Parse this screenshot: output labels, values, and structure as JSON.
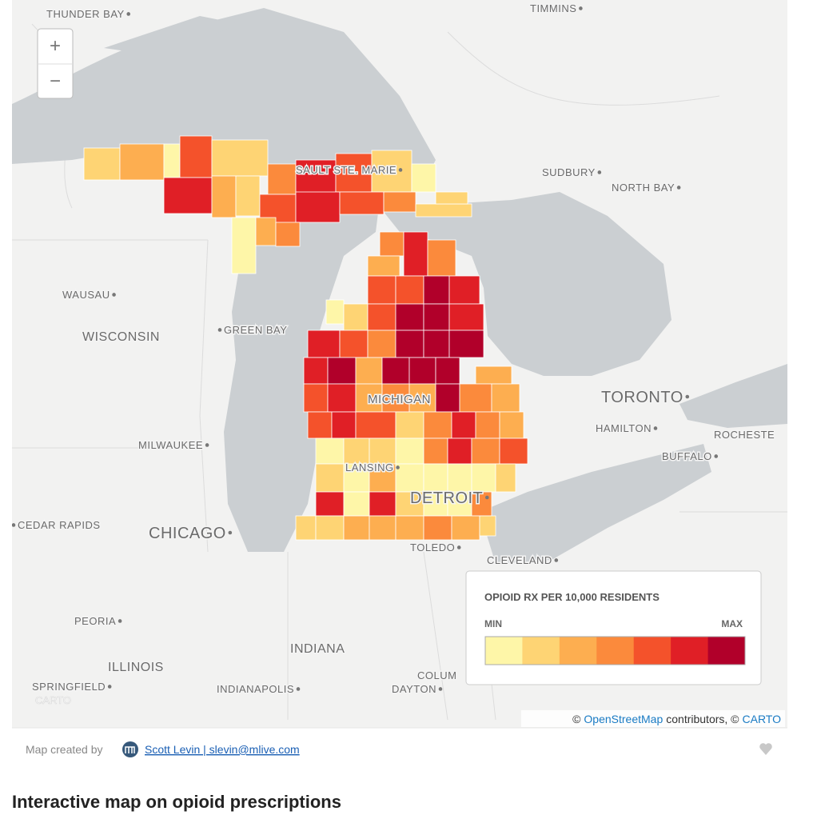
{
  "map": {
    "cities": [
      "THUNDER BAY",
      "TIMMINS",
      "SAULT STE. MARIE",
      "SUDBURY",
      "NORTH BAY",
      "WAUSAU",
      "GREEN BAY",
      "TORONTO",
      "HAMILTON",
      "ROCHESTE",
      "BUFFALO",
      "MILWAUKEE",
      "LANSING",
      "DETROIT",
      "CEDAR RAPIDS",
      "CHICAGO",
      "TOLEDO",
      "CLEVELAND",
      "PEORIA",
      "SPRINGFIELD",
      "INDIANAPOLIS",
      "DAYTON",
      "COLUM"
    ],
    "regions": [
      "WISCONSIN",
      "MICHIGAN",
      "INDIANA",
      "ILLINOIS"
    ],
    "zoom_in": "+",
    "zoom_out": "−",
    "watermark": "CARTO",
    "legend": {
      "title": "OPIOID RX PER 10,000 RESIDENTS",
      "min_label": "MIN",
      "max_label": "MAX",
      "colors": [
        "#fef6a8",
        "#fed474",
        "#fdae50",
        "#fb8a3c",
        "#f4522b",
        "#e01f26",
        "#b1002a"
      ]
    },
    "attribution": {
      "prefix": "©",
      "osm": "OpenStreetMap",
      "middle": "contributors, ©",
      "carto": "CARTO"
    }
  },
  "footer": {
    "credit": "Map created by",
    "author": "Scott Levin | slevin@mlive.com"
  },
  "heading": "Interactive map on opioid prescriptions"
}
